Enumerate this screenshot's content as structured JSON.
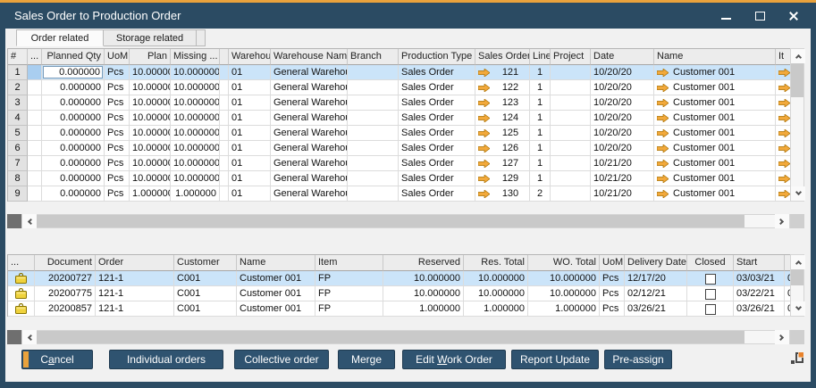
{
  "window": {
    "title": "Sales Order to Production Order",
    "controls": [
      {
        "name": "minimize"
      },
      {
        "name": "maximize"
      },
      {
        "name": "close"
      }
    ]
  },
  "tabs": [
    {
      "label": "Order related",
      "active": true
    },
    {
      "label": "Storage related",
      "active": false
    }
  ],
  "top_table": {
    "columns": [
      {
        "key": "num",
        "label": "#"
      },
      {
        "key": "sel",
        "label": "..."
      },
      {
        "key": "planned_qty",
        "label": "Planned Qty"
      },
      {
        "key": "uom",
        "label": "UoM"
      },
      {
        "key": "plan",
        "label": "Plan"
      },
      {
        "key": "missing",
        "label": "Missing ..."
      },
      {
        "key": "spacer",
        "label": ""
      },
      {
        "key": "warehouse",
        "label": "Warehous"
      },
      {
        "key": "warehouse_name",
        "label": "Warehouse Nam ..."
      },
      {
        "key": "branch",
        "label": "Branch"
      },
      {
        "key": "production_type",
        "label": "Production Type"
      },
      {
        "key": "sales_order",
        "label": "Sales Order"
      },
      {
        "key": "line",
        "label": "Line"
      },
      {
        "key": "project",
        "label": "Project"
      },
      {
        "key": "date",
        "label": "Date"
      },
      {
        "key": "name",
        "label": "Name"
      },
      {
        "key": "item",
        "label": "It"
      }
    ],
    "rows": [
      {
        "num": "1",
        "planned_qty": "0.000000",
        "uom": "Pcs",
        "plan": "10.000000",
        "missing": "10.000000",
        "warehouse": "01",
        "warehouse_name": "General Warehou",
        "branch": "",
        "production_type": "Sales Order",
        "sales_order": "121",
        "line": "1",
        "project": "",
        "date": "10/20/20",
        "name": "Customer 001",
        "selected": true,
        "editing": true
      },
      {
        "num": "2",
        "planned_qty": "0.000000",
        "uom": "Pcs",
        "plan": "10.000000",
        "missing": "10.000000",
        "warehouse": "01",
        "warehouse_name": "General Warehou",
        "branch": "",
        "production_type": "Sales Order",
        "sales_order": "122",
        "line": "1",
        "project": "",
        "date": "10/20/20",
        "name": "Customer 001",
        "selected": false,
        "editing": false
      },
      {
        "num": "3",
        "planned_qty": "0.000000",
        "uom": "Pcs",
        "plan": "10.000000",
        "missing": "10.000000",
        "warehouse": "01",
        "warehouse_name": "General Warehou",
        "branch": "",
        "production_type": "Sales Order",
        "sales_order": "123",
        "line": "1",
        "project": "",
        "date": "10/20/20",
        "name": "Customer 001",
        "selected": false,
        "editing": false
      },
      {
        "num": "4",
        "planned_qty": "0.000000",
        "uom": "Pcs",
        "plan": "10.000000",
        "missing": "10.000000",
        "warehouse": "01",
        "warehouse_name": "General Warehou",
        "branch": "",
        "production_type": "Sales Order",
        "sales_order": "124",
        "line": "1",
        "project": "",
        "date": "10/20/20",
        "name": "Customer 001",
        "selected": false,
        "editing": false
      },
      {
        "num": "5",
        "planned_qty": "0.000000",
        "uom": "Pcs",
        "plan": "10.000000",
        "missing": "10.000000",
        "warehouse": "01",
        "warehouse_name": "General Warehou",
        "branch": "",
        "production_type": "Sales Order",
        "sales_order": "125",
        "line": "1",
        "project": "",
        "date": "10/20/20",
        "name": "Customer 001",
        "selected": false,
        "editing": false
      },
      {
        "num": "6",
        "planned_qty": "0.000000",
        "uom": "Pcs",
        "plan": "10.000000",
        "missing": "10.000000",
        "warehouse": "01",
        "warehouse_name": "General Warehou",
        "branch": "",
        "production_type": "Sales Order",
        "sales_order": "126",
        "line": "1",
        "project": "",
        "date": "10/20/20",
        "name": "Customer 001",
        "selected": false,
        "editing": false
      },
      {
        "num": "7",
        "planned_qty": "0.000000",
        "uom": "Pcs",
        "plan": "10.000000",
        "missing": "10.000000",
        "warehouse": "01",
        "warehouse_name": "General Warehou",
        "branch": "",
        "production_type": "Sales Order",
        "sales_order": "127",
        "line": "1",
        "project": "",
        "date": "10/21/20",
        "name": "Customer 001",
        "selected": false,
        "editing": false
      },
      {
        "num": "8",
        "planned_qty": "0.000000",
        "uom": "Pcs",
        "plan": "10.000000",
        "missing": "10.000000",
        "warehouse": "01",
        "warehouse_name": "General Warehou",
        "branch": "",
        "production_type": "Sales Order",
        "sales_order": "129",
        "line": "1",
        "project": "",
        "date": "10/21/20",
        "name": "Customer 001",
        "selected": false,
        "editing": false
      },
      {
        "num": "9",
        "planned_qty": "0.000000",
        "uom": "Pcs",
        "plan": "1.000000",
        "missing": "1.000000",
        "warehouse": "01",
        "warehouse_name": "General Warehou",
        "branch": "",
        "production_type": "Sales Order",
        "sales_order": "130",
        "line": "2",
        "project": "",
        "date": "10/21/20",
        "name": "Customer 001",
        "selected": false,
        "editing": false
      }
    ]
  },
  "bottom_table": {
    "columns": [
      {
        "key": "icon",
        "label": "..."
      },
      {
        "key": "document",
        "label": "Document"
      },
      {
        "key": "order",
        "label": "Order"
      },
      {
        "key": "customer",
        "label": "Customer"
      },
      {
        "key": "name",
        "label": "Name"
      },
      {
        "key": "item",
        "label": "Item"
      },
      {
        "key": "reserved",
        "label": "Reserved"
      },
      {
        "key": "res_total",
        "label": "Res. Total"
      },
      {
        "key": "wo_total",
        "label": "WO. Total"
      },
      {
        "key": "uom",
        "label": "UoM"
      },
      {
        "key": "delivery_date",
        "label": "Delivery Date"
      },
      {
        "key": "closed",
        "label": "Closed"
      },
      {
        "key": "start",
        "label": "Start"
      },
      {
        "key": "clip",
        "label": ""
      }
    ],
    "rows": [
      {
        "document": "20200727",
        "order": "121-1",
        "customer": "C001",
        "name": "Customer 001",
        "item": "FP",
        "reserved": "10.000000",
        "res_total": "10.000000",
        "wo_total": "10.000000",
        "uom": "Pcs",
        "delivery_date": "12/17/20",
        "closed": false,
        "start": "03/03/21",
        "clip": "0",
        "selected": true
      },
      {
        "document": "20200775",
        "order": "121-1",
        "customer": "C001",
        "name": "Customer 001",
        "item": "FP",
        "reserved": "10.000000",
        "res_total": "10.000000",
        "wo_total": "10.000000",
        "uom": "Pcs",
        "delivery_date": "02/12/21",
        "closed": false,
        "start": "03/22/21",
        "clip": "0",
        "selected": false
      },
      {
        "document": "20200857",
        "order": "121-1",
        "customer": "C001",
        "name": "Customer 001",
        "item": "FP",
        "reserved": "1.000000",
        "res_total": "1.000000",
        "wo_total": "1.000000",
        "uom": "Pcs",
        "delivery_date": "03/26/21",
        "closed": false,
        "start": "03/26/21",
        "clip": "0",
        "selected": false
      }
    ]
  },
  "action_buttons": [
    {
      "label": "Cancel",
      "accel": "a",
      "focused": true
    },
    {
      "label": "Individual orders"
    },
    {
      "label": "Collective order"
    },
    {
      "label": "Merge"
    },
    {
      "label": "Edit Work Order",
      "accel": "W"
    },
    {
      "label": "Report Update"
    },
    {
      "label": "Pre-assign"
    }
  ],
  "icons": {
    "row_link": "link-arrow-icon",
    "row_status": "lock-icon",
    "resize": "resize-grip-icon"
  },
  "colors": {
    "accent_orange": "#E9A23C",
    "titlebar_blue": "#2B4B63",
    "selection_blue": "#CBE4F9",
    "button_blue": "#2F5370",
    "link_arrow_orange": "#F2A93B",
    "lock_yellow": "#EFD23C"
  }
}
